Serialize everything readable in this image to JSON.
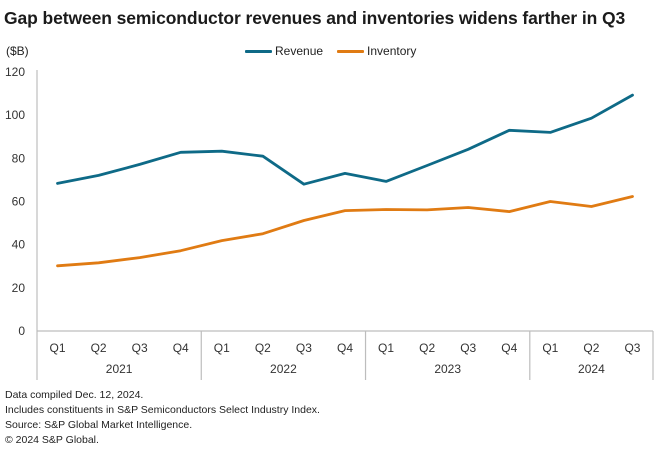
{
  "title": "Gap between semiconductor revenues and inventories widens farther in Q3",
  "unit_label": "($B)",
  "legend": [
    {
      "label": "Revenue",
      "color": "#0E6A87"
    },
    {
      "label": "Inventory",
      "color": "#E07B13"
    }
  ],
  "notes": [
    "Data compiled Dec. 12, 2024.",
    "Includes constituents in S&P Semiconductors Select Industry Index.",
    "Source: S&P Global Market Intelligence.",
    "© 2024 S&P Global."
  ],
  "chart_data": {
    "type": "line",
    "title": "Gap between semiconductor revenues and inventories widens farther in Q3",
    "xlabel": "",
    "ylabel": "($B)",
    "ylim": [
      0,
      120
    ],
    "yticks": [
      0,
      20,
      40,
      60,
      80,
      100,
      120
    ],
    "grid": false,
    "legend_position": "top-center",
    "categories": [
      "Q1",
      "Q2",
      "Q3",
      "Q4",
      "Q1",
      "Q2",
      "Q3",
      "Q4",
      "Q1",
      "Q2",
      "Q3",
      "Q4",
      "Q1",
      "Q2",
      "Q3"
    ],
    "groups": [
      {
        "label": "2021",
        "count": 4
      },
      {
        "label": "2022",
        "count": 4
      },
      {
        "label": "2023",
        "count": 4
      },
      {
        "label": "2024",
        "count": 3
      }
    ],
    "series": [
      {
        "name": "Revenue",
        "color": "#0E6A87",
        "values": [
          68.4,
          72.1,
          77.2,
          82.8,
          83.3,
          81.0,
          68.0,
          73.0,
          69.3,
          76.7,
          84.2,
          93.0,
          92.0,
          98.6,
          109.3
        ]
      },
      {
        "name": "Inventory",
        "color": "#E07B13",
        "values": [
          30.2,
          31.6,
          34.0,
          37.2,
          41.9,
          45.1,
          51.2,
          55.8,
          56.3,
          56.1,
          57.2,
          55.3,
          60.0,
          57.7,
          62.3
        ]
      }
    ]
  }
}
